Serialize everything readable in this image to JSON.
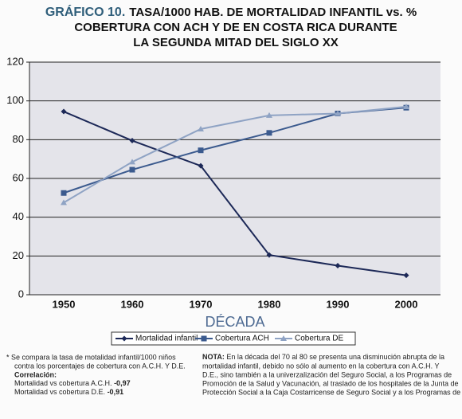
{
  "chart_data": {
    "type": "line",
    "title_prefix": "GRÁFICO 10.",
    "title_lines": [
      "TASA/1000 HAB. DE MORTALIDAD INFANTIL vs. %",
      "COBERTURA CON ACH Y DE EN COSTA RICA DURANTE",
      "LA SEGUNDA MITAD DEL SIGLO XX"
    ],
    "x_label": "DÉCADA",
    "categories": [
      "1950",
      "1960",
      "1970",
      "1980",
      "1990",
      "2000"
    ],
    "series": [
      {
        "name": "Mortalidad infantil",
        "color": "#1c2857",
        "marker": "diamond",
        "values": [
          94.5,
          79.5,
          66.5,
          20.5,
          15,
          10
        ]
      },
      {
        "name": "Cobertura ACH",
        "color": "#3b5a8e",
        "marker": "square",
        "values": [
          52.5,
          64.5,
          74.5,
          83.5,
          93.5,
          96.5
        ]
      },
      {
        "name": "Cobertura DE",
        "color": "#8fa3c4",
        "marker": "triangle",
        "values": [
          47.5,
          68.5,
          85.5,
          92.5,
          93.5,
          97
        ]
      }
    ],
    "ylim": [
      0,
      120
    ],
    "yticks": [
      0,
      20,
      40,
      60,
      80,
      100,
      120
    ],
    "grid": true
  },
  "notes": {
    "left": {
      "line1": "*  Se compara la tasa de motalidad infantil/1000 niños",
      "line2": "contra los porcentajes de cobertura con A.C.H. Y D.E.",
      "heading": "Correlación:",
      "ach_label": "Mortalidad vs cobertura A.C.H. ",
      "ach_value": "-0,97",
      "de_label": "Mortalidad vs cobertura D.E. ",
      "de_value": "-0,91"
    },
    "right": {
      "heading": "NOTA:",
      "lines": [
        " En la década del 70 al 80 se presenta una disminución abrupta de la",
        "mortalidad infantil, debido no sólo al aumento en la cobertura con A.C.H. Y",
        "D.E., sino también a la univerzalización del Seguro Social, a los Programas de",
        "Promoción de la Salud y Vacunación, al traslado de los hospitales de la Junta de",
        "Protección Social a la Caja Costarricense de Seguro Social y a los Programas de"
      ]
    }
  }
}
